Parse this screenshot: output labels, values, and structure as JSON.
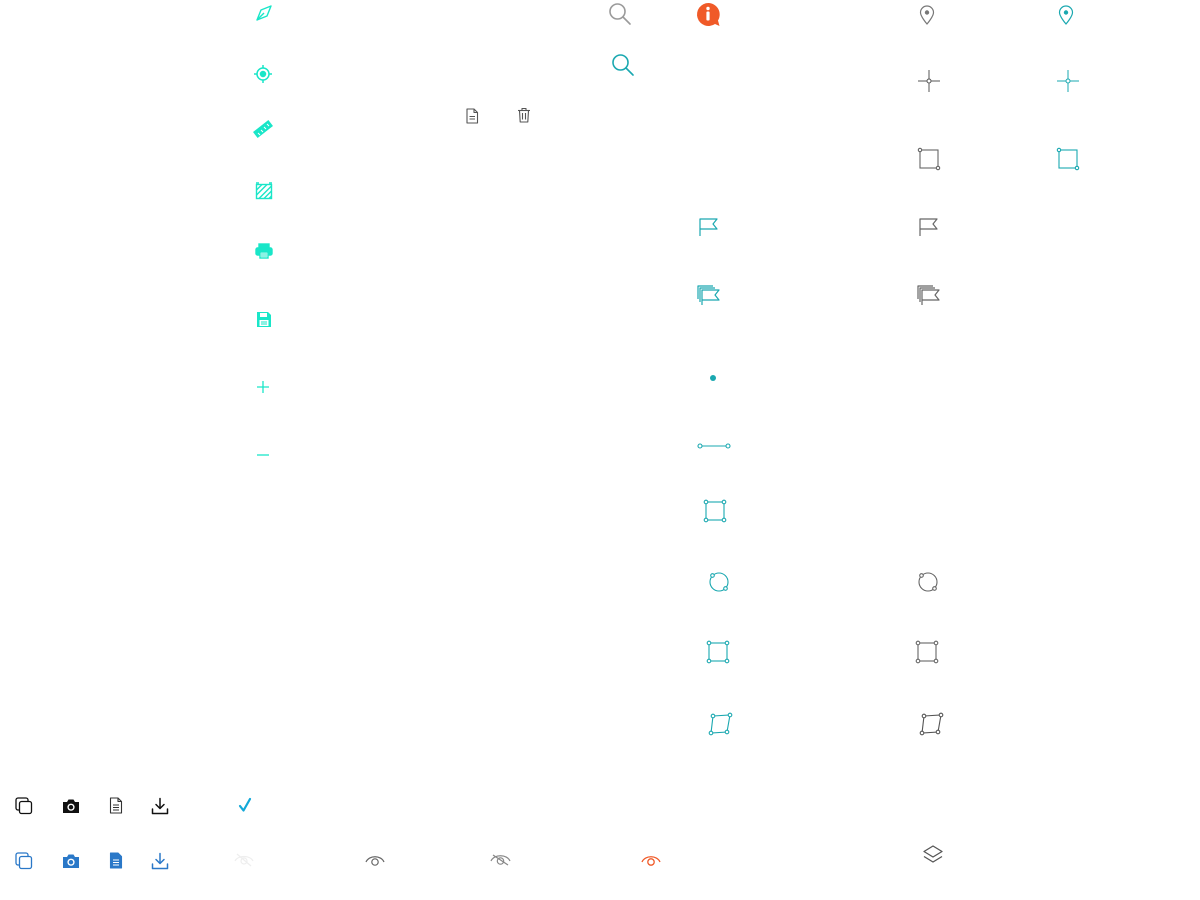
{
  "palette": {
    "cyan": "#19e6c8",
    "teal": "#1aa8b0",
    "gray": "#8c8c8c",
    "dark": "#555555",
    "black": "#111111",
    "blue": "#2a78c8",
    "orange": "#f05a28",
    "check": "#12a8d8"
  },
  "icons": {
    "left_toolbar": [
      "compass-pen-icon",
      "locate-icon",
      "ruler-icon",
      "hatch-area-icon",
      "print-icon",
      "save-icon",
      "zoom-in-plus-icon",
      "zoom-out-minus-icon"
    ],
    "document_actions": [
      "document-icon",
      "trash-icon"
    ],
    "search": [
      "search-icon-gray",
      "search-icon-teal"
    ],
    "info": [
      "info-comment-icon"
    ],
    "marker_tools": [
      "pin-icon",
      "crosshair-icon",
      "rectangle-select-icon",
      "flag-icon",
      "multi-flag-icon"
    ],
    "draw_tools": [
      "point-icon",
      "line-icon",
      "polygon-icon",
      "circle-icon",
      "square-icon",
      "quadrilateral-icon"
    ],
    "bottom_bar": [
      "copy-icon",
      "camera-icon",
      "document-icon",
      "download-icon",
      "check-icon",
      "eye-hidden-icon",
      "eye-icon",
      "eye-slash-icon",
      "eye-active-icon",
      "layers-icon"
    ]
  }
}
